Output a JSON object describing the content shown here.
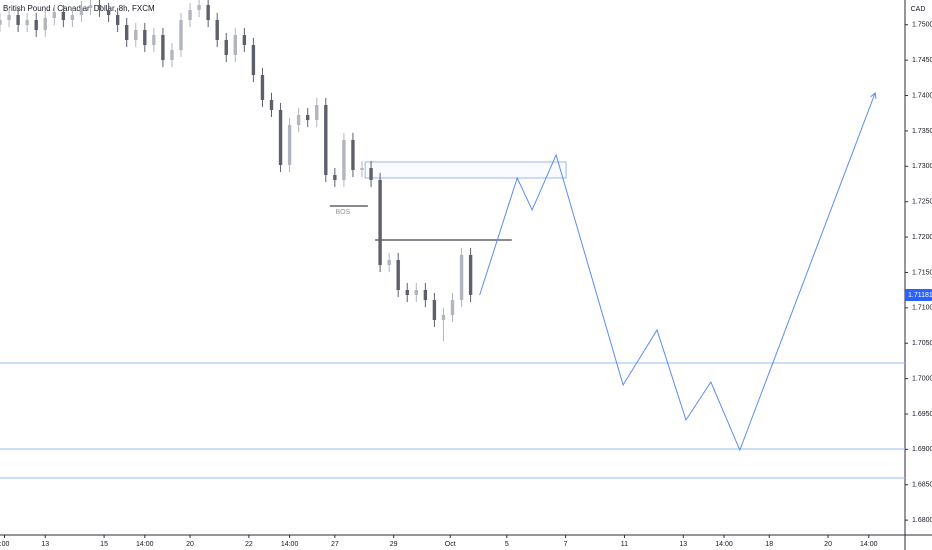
{
  "chart_data": {
    "type": "candlestick",
    "title": "British Pound / Canadian Dollar, 8h, FXCM",
    "currency": "CAD",
    "up_color": "#b2b5be",
    "down_color": "#5d606b",
    "drawing_color": "#5b8def",
    "xlim": [
      0,
      200
    ],
    "ylim": [
      1.6779,
      1.7535
    ],
    "x": [
      0,
      2,
      4,
      6,
      8,
      10,
      12,
      14,
      16,
      18,
      20,
      22,
      24,
      26,
      28,
      30,
      32,
      34,
      36,
      38,
      40,
      42,
      44,
      46,
      48,
      50,
      52,
      54,
      56,
      58,
      60,
      62,
      64,
      66,
      68,
      70,
      72,
      74,
      76,
      78,
      80,
      82,
      84,
      86,
      88,
      90,
      92,
      94,
      96,
      98,
      100,
      102,
      104
    ],
    "open": [
      1.75,
      1.75067,
      1.75138,
      1.74997,
      1.75067,
      1.74926,
      1.75096,
      1.7518,
      1.75067,
      1.75138,
      1.75237,
      1.75279,
      1.75209,
      1.75138,
      1.74997,
      1.74785,
      1.74926,
      1.74714,
      1.74855,
      1.74502,
      1.74643,
      1.75067,
      1.75209,
      1.75279,
      1.75067,
      1.74785,
      1.74573,
      1.74855,
      1.74714,
      1.7429,
      1.73937,
      1.73796,
      1.73019,
      1.73584,
      1.73725,
      1.73654,
      1.73866,
      1.72877,
      1.72807,
      1.73372,
      1.72948,
      1.72976,
      1.72807,
      1.71605,
      1.71676,
      1.71252,
      1.71182,
      1.71252,
      1.71111,
      1.70828,
      1.70899,
      1.71111,
      1.71747
    ],
    "high": [
      1.75167,
      1.75238,
      1.75238,
      1.75167,
      1.75167,
      1.75196,
      1.7528,
      1.7528,
      1.75238,
      1.75337,
      1.7535,
      1.7535,
      1.75309,
      1.75238,
      1.75097,
      1.75026,
      1.75026,
      1.74955,
      1.74955,
      1.74743,
      1.75167,
      1.75309,
      1.7535,
      1.7535,
      1.75167,
      1.74885,
      1.74955,
      1.74955,
      1.74814,
      1.7439,
      1.74037,
      1.73896,
      1.73684,
      1.73825,
      1.73825,
      1.73966,
      1.73966,
      1.72977,
      1.73472,
      1.73472,
      1.73076,
      1.73076,
      1.72907,
      1.71776,
      1.71776,
      1.71352,
      1.71352,
      1.71352,
      1.71211,
      1.70999,
      1.71211,
      1.71847,
      1.71847
    ],
    "low": [
      1.749,
      1.74967,
      1.74897,
      1.74897,
      1.74826,
      1.74826,
      1.74996,
      1.74967,
      1.74967,
      1.75038,
      1.75137,
      1.75109,
      1.75038,
      1.74897,
      1.74685,
      1.74685,
      1.74614,
      1.74614,
      1.74402,
      1.74402,
      1.74543,
      1.74967,
      1.75109,
      1.74967,
      1.74685,
      1.74473,
      1.74473,
      1.74614,
      1.7419,
      1.73837,
      1.73696,
      1.72919,
      1.72919,
      1.73484,
      1.73554,
      1.73554,
      1.72777,
      1.72707,
      1.72707,
      1.72848,
      1.72848,
      1.72707,
      1.71505,
      1.71505,
      1.71152,
      1.71082,
      1.71082,
      1.71011,
      1.70728,
      1.70528,
      1.70799,
      1.71011,
      1.71082
    ],
    "close": [
      1.75067,
      1.75138,
      1.74997,
      1.75067,
      1.74926,
      1.75096,
      1.7518,
      1.75067,
      1.75138,
      1.75237,
      1.75279,
      1.75209,
      1.75138,
      1.74997,
      1.74785,
      1.74926,
      1.74714,
      1.74855,
      1.74502,
      1.74643,
      1.75067,
      1.75209,
      1.75279,
      1.75067,
      1.74785,
      1.74573,
      1.74855,
      1.74714,
      1.7429,
      1.73937,
      1.73796,
      1.73019,
      1.73584,
      1.73725,
      1.73654,
      1.73866,
      1.72877,
      1.72807,
      1.73372,
      1.72948,
      1.72976,
      1.72807,
      1.71605,
      1.71676,
      1.71252,
      1.71182,
      1.71252,
      1.71111,
      1.70828,
      1.70899,
      1.71111,
      1.71747,
      1.71182
    ],
    "last_price": 1.71181,
    "projection": {
      "x": [
        106,
        114.3,
        117.6,
        122.9,
        137.7,
        145.2,
        151.6,
        157.1,
        163.5,
        193.4
      ],
      "values": [
        1.7118,
        1.72835,
        1.72383,
        1.7316,
        1.6991,
        1.70687,
        1.69415,
        1.69952,
        1.68991,
        1.74036
      ]
    },
    "levels": [
      1.70221,
      1.69006,
      1.68596
    ],
    "zone": {
      "x": [
        80.7,
        125.1
      ],
      "values": [
        1.73061,
        1.72835
      ]
    },
    "bos_lines": [
      {
        "x": [
          72.9,
          81.3
        ],
        "value": 1.72439,
        "label": "BOS"
      },
      {
        "x": [
          82.9,
          113.1
        ],
        "value": 1.71959
      }
    ],
    "yticks": [
      {
        "value": 1.68,
        "label": "1.68000"
      },
      {
        "value": 1.685,
        "label": "1.68500"
      },
      {
        "value": 1.69,
        "label": "1.69000"
      },
      {
        "value": 1.695,
        "label": "1.69500"
      },
      {
        "value": 1.7,
        "label": "1.70000"
      },
      {
        "value": 1.705,
        "label": "1.70500"
      },
      {
        "value": 1.71,
        "label": "1.71000"
      },
      {
        "value": 1.715,
        "label": "1.71500"
      },
      {
        "value": 1.72,
        "label": "1.72000"
      },
      {
        "value": 1.725,
        "label": "1.72500"
      },
      {
        "value": 1.73,
        "label": "1.73000"
      },
      {
        "value": 1.735,
        "label": "1.73500"
      },
      {
        "value": 1.74,
        "label": "1.74000"
      },
      {
        "value": 1.745,
        "label": "1.74500"
      },
      {
        "value": 1.75,
        "label": "1.75000"
      }
    ],
    "xticks": [
      {
        "value": 1,
        "label": ":00"
      },
      {
        "value": 10,
        "label": "13"
      },
      {
        "value": 23,
        "label": "15"
      },
      {
        "value": 32,
        "label": "14:00"
      },
      {
        "value": 42,
        "label": "20"
      },
      {
        "value": 55,
        "label": "22"
      },
      {
        "value": 64,
        "label": "14:00"
      },
      {
        "value": 74,
        "label": "27"
      },
      {
        "value": 87,
        "label": "29"
      },
      {
        "value": 99.5,
        "label": "Oct"
      },
      {
        "value": 112,
        "label": "5"
      },
      {
        "value": 125,
        "label": "7"
      },
      {
        "value": 138,
        "label": "11"
      },
      {
        "value": 151,
        "label": "13"
      },
      {
        "value": 160,
        "label": "14:00"
      },
      {
        "value": 170,
        "label": "18"
      },
      {
        "value": 183,
        "label": "20"
      },
      {
        "value": 192,
        "label": "14:00"
      }
    ]
  }
}
